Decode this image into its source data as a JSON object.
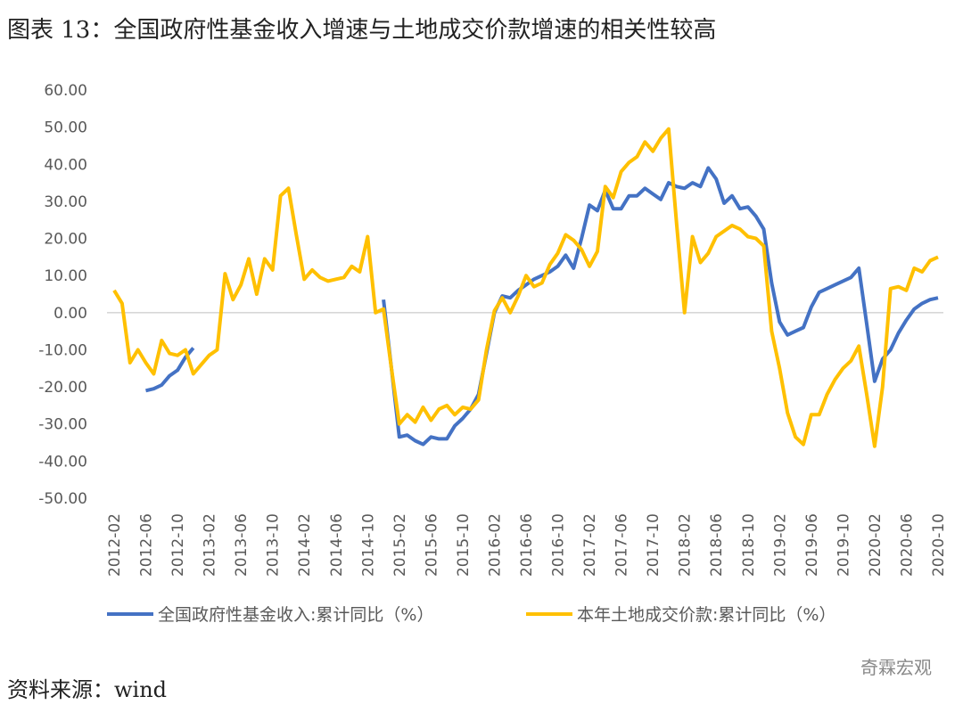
{
  "chart_data": {
    "type": "line",
    "title": "图表 13：全国政府性基金收入增速与土地成交价款增速的相关性较高",
    "source": "资料来源：wind",
    "watermark": "奇霖宏观",
    "categories": [
      "2012-02",
      null,
      null,
      null,
      "2012-06",
      null,
      null,
      null,
      "2012-10",
      null,
      null,
      null,
      "2013-02",
      null,
      null,
      null,
      "2013-06",
      null,
      null,
      null,
      "2013-10",
      null,
      null,
      null,
      "2014-02",
      null,
      null,
      null,
      "2014-06",
      null,
      null,
      null,
      "2014-10",
      null,
      null,
      null,
      "2015-02",
      null,
      null,
      null,
      "2015-06",
      null,
      null,
      null,
      "2015-10",
      null,
      null,
      null,
      "2016-02",
      null,
      null,
      null,
      "2016-06",
      null,
      null,
      null,
      "2016-10",
      null,
      null,
      null,
      "2017-02",
      null,
      null,
      null,
      "2017-06",
      null,
      null,
      null,
      "2017-10",
      null,
      null,
      null,
      "2018-02",
      null,
      null,
      null,
      "2018-06",
      null,
      null,
      null,
      "2018-10",
      null,
      null,
      null,
      "2019-02",
      null,
      null,
      null,
      "2019-06",
      null,
      null,
      null,
      "2019-10",
      null,
      null,
      null,
      "2020-02",
      null,
      null,
      null,
      "2020-06",
      null,
      null,
      null,
      "2020-10"
    ],
    "series": [
      {
        "name": "全国政府性基金收入:累计同比（%）",
        "color": "#4472c4",
        "values": [
          null,
          null,
          null,
          null,
          -21,
          -20.5,
          -19.5,
          -17,
          -15.5,
          -12,
          -9.5,
          null,
          null,
          null,
          null,
          null,
          null,
          null,
          null,
          null,
          null,
          null,
          null,
          null,
          null,
          null,
          null,
          null,
          null,
          null,
          null,
          null,
          null,
          null,
          3.5,
          -15,
          -33.5,
          -33,
          -34.5,
          -35.5,
          -33.5,
          -34,
          -34,
          -30.5,
          -28.5,
          -26,
          -22,
          -11,
          0,
          4.5,
          4,
          6,
          7.5,
          9,
          10,
          11,
          12.5,
          15.5,
          12,
          20,
          29,
          27.5,
          33,
          28,
          28,
          31.5,
          31.5,
          33.5,
          32,
          30.5,
          35,
          34,
          33.5,
          35,
          34,
          39,
          36,
          29.5,
          31.5,
          28,
          28.5,
          26,
          22.5,
          8,
          -2.5,
          -6,
          -5,
          -4,
          1.5,
          5.5,
          6.5,
          7.5,
          8.5,
          9.5,
          12,
          -3,
          -18.5,
          -12.5,
          -10,
          -5.5,
          -2,
          1,
          2.5,
          3.5,
          4
        ]
      },
      {
        "name": "本年土地成交价款:累计同比（%）",
        "color": "#ffc000",
        "values": [
          6,
          2.5,
          -13.5,
          -10,
          -13.5,
          -16.5,
          -7.5,
          -11,
          -11.5,
          -10,
          -16.5,
          -14,
          -11.5,
          -10,
          10.5,
          3.5,
          7.5,
          14.5,
          5,
          14.5,
          11.5,
          31.5,
          33.5,
          21,
          9,
          11.5,
          9.5,
          8.5,
          9,
          9.5,
          12.5,
          11,
          20.5,
          0,
          1,
          -15,
          -30,
          -27.5,
          -29.5,
          -25.5,
          -29,
          -26,
          -25,
          -27.5,
          -25.5,
          -26,
          -23.5,
          -10,
          0.5,
          4,
          0,
          4.5,
          10,
          7,
          8,
          13,
          16,
          21,
          19.5,
          17,
          12.5,
          16.5,
          34,
          31,
          38,
          40.5,
          42,
          46,
          43.5,
          47,
          49.5,
          24,
          0,
          20.5,
          13.5,
          16,
          20.5,
          22,
          23.5,
          22.5,
          20.5,
          20,
          18,
          -5,
          -15,
          -27,
          -33.5,
          -35.5,
          -27.5,
          -27.5,
          -22,
          -18,
          -15,
          -13,
          -9,
          -22,
          -36,
          -20,
          6.5,
          7,
          6,
          12,
          11,
          14,
          15
        ]
      }
    ],
    "ylim": [
      -50,
      60
    ],
    "yticks": [
      {
        "value": -50,
        "label": "-50.00"
      },
      {
        "value": -40,
        "label": "-40.00"
      },
      {
        "value": -30,
        "label": "-30.00"
      },
      {
        "value": -20,
        "label": "-20.00"
      },
      {
        "value": -10,
        "label": "-10.00"
      },
      {
        "value": 0,
        "label": "0.00"
      },
      {
        "value": 10,
        "label": "10.00"
      },
      {
        "value": 20,
        "label": "20.00"
      },
      {
        "value": 30,
        "label": "30.00"
      },
      {
        "value": 40,
        "label": "40.00"
      },
      {
        "value": 50,
        "label": "50.00"
      },
      {
        "value": 60,
        "label": "60.00"
      }
    ],
    "legend": "bottom"
  }
}
